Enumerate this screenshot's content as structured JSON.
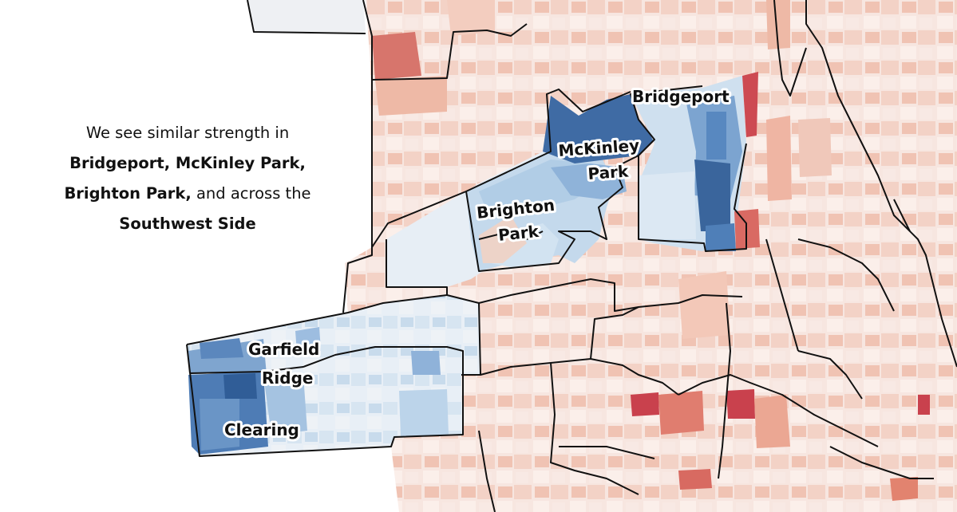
{
  "caption": {
    "line1": "We see similar strength in",
    "line2": "Bridgeport, McKinley Park,",
    "line3_bold": "Brighton Park,",
    "line3_rest": " and across the",
    "line4": "Southwest Side"
  },
  "labels": {
    "bridgeport": "Bridgeport",
    "mckinley_1": "McKinley",
    "mckinley_2": "Park",
    "brighton_1": "Brighton",
    "brighton_2": "Park",
    "garfield_1": "Garfield",
    "garfield_2": "Ridge",
    "clearing": "Clearing"
  },
  "colors": {
    "strong_blue": "#2f5e98",
    "mid_blue": "#5f8fc4",
    "light_blue": "#b9d3e8",
    "pale_blue": "#dbe8f3",
    "neutral": "#f1f2f4",
    "pale_red": "#f6ddd4",
    "light_red": "#efbaa8",
    "mid_red": "#e2836f",
    "strong_red": "#c9414d",
    "boundary": "#111111"
  }
}
